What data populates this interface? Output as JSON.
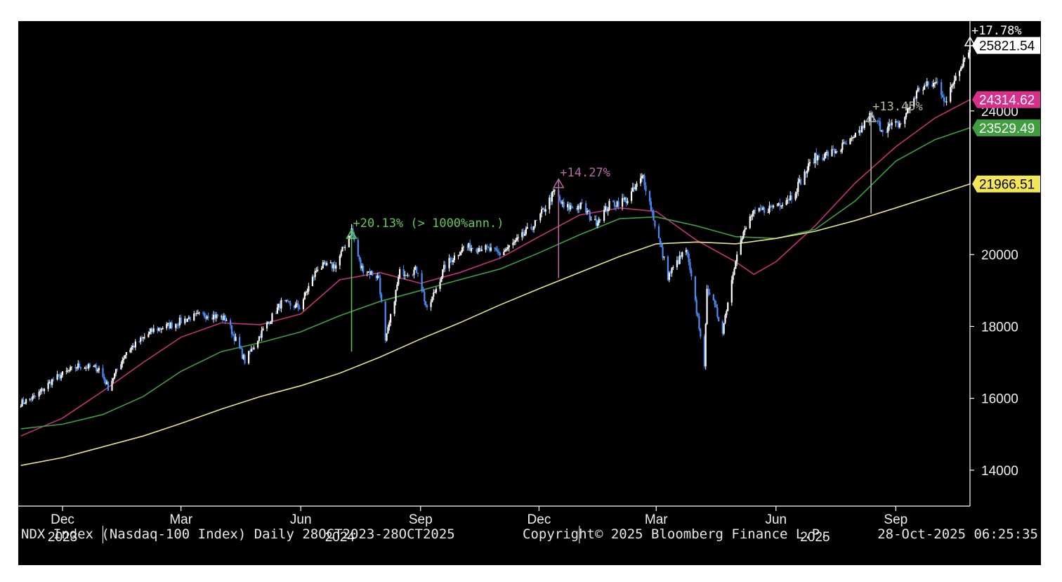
{
  "footer": {
    "description": "NDX Index (Nasdaq-100 Index) Daily 28OCT2023-28OCT2025",
    "copyright": "Copyright© 2025 Bloomberg Finance L.P.",
    "timestamp": "28-Oct-2025 06:25:35"
  },
  "chart_data": {
    "type": "line",
    "scale": "linear",
    "x_range": [
      "2023-10-28",
      "2025-10-28"
    ],
    "ylim": [
      13000,
      26500
    ],
    "grid": false,
    "y_ticks": [
      14000,
      16000,
      18000,
      20000,
      24000
    ],
    "y_tick_labels": [
      "14000",
      "16000",
      "18000",
      "20000",
      "24000"
    ],
    "x_ticks": [
      {
        "date": "2023-12-01",
        "label": "Dec"
      },
      {
        "date": "2024-03-01",
        "label": "Mar"
      },
      {
        "date": "2024-06-01",
        "label": "Jun"
      },
      {
        "date": "2024-09-01",
        "label": "Sep"
      },
      {
        "date": "2024-12-01",
        "label": "Dec"
      },
      {
        "date": "2025-03-01",
        "label": "Mar"
      },
      {
        "date": "2025-06-01",
        "label": "Jun"
      },
      {
        "date": "2025-09-01",
        "label": "Sep"
      }
    ],
    "year_labels": [
      {
        "date": "2023-12-01",
        "label": "2023"
      },
      {
        "date": "2024-07-01",
        "label": "2024"
      },
      {
        "date": "2025-07-01",
        "label": "2025"
      }
    ],
    "colors": {
      "price": "#ffffff",
      "price_down": "#4a8df8",
      "ma_fast": "#c2327a",
      "ma_mid": "#3f9e3f",
      "ma_slow": "#e8e28c"
    },
    "series": [
      {
        "key": "price",
        "points": [
          [
            "2023-10-30",
            15870
          ],
          [
            "2023-11-10",
            16040
          ],
          [
            "2023-11-24",
            16530
          ],
          [
            "2023-12-13",
            16900
          ],
          [
            "2023-12-29",
            16830
          ],
          [
            "2024-01-05",
            16300
          ],
          [
            "2024-01-19",
            17300
          ],
          [
            "2024-02-09",
            17900
          ],
          [
            "2024-02-23",
            18050
          ],
          [
            "2024-03-08",
            18250
          ],
          [
            "2024-03-22",
            18340
          ],
          [
            "2024-04-05",
            18200
          ],
          [
            "2024-04-19",
            17040
          ],
          [
            "2024-05-03",
            17900
          ],
          [
            "2024-05-17",
            18650
          ],
          [
            "2024-05-31",
            18540
          ],
          [
            "2024-06-14",
            19650
          ],
          [
            "2024-06-28",
            19700
          ],
          [
            "2024-07-10",
            20690
          ],
          [
            "2024-07-17",
            19650
          ],
          [
            "2024-07-31",
            19360
          ],
          [
            "2024-08-05",
            17540
          ],
          [
            "2024-08-16",
            19500
          ],
          [
            "2024-08-30",
            19570
          ],
          [
            "2024-09-06",
            18430
          ],
          [
            "2024-09-20",
            19700
          ],
          [
            "2024-10-04",
            20200
          ],
          [
            "2024-10-18",
            20200
          ],
          [
            "2024-11-01",
            20020
          ],
          [
            "2024-11-15",
            20400
          ],
          [
            "2024-11-29",
            20900
          ],
          [
            "2024-12-13",
            21760
          ],
          [
            "2024-12-20",
            21300
          ],
          [
            "2025-01-03",
            21350
          ],
          [
            "2025-01-13",
            20880
          ],
          [
            "2025-01-24",
            21380
          ],
          [
            "2025-02-07",
            21540
          ],
          [
            "2025-02-19",
            22180
          ],
          [
            "2025-03-10",
            19400
          ],
          [
            "2025-03-24",
            20150
          ],
          [
            "2025-04-04",
            17800
          ],
          [
            "2025-04-07",
            16800
          ],
          [
            "2025-04-09",
            19150
          ],
          [
            "2025-04-21",
            17900
          ],
          [
            "2025-05-02",
            20100
          ],
          [
            "2025-05-13",
            21100
          ],
          [
            "2025-05-30",
            21350
          ],
          [
            "2025-06-13",
            21630
          ],
          [
            "2025-06-30",
            22680
          ],
          [
            "2025-07-15",
            22850
          ],
          [
            "2025-07-31",
            23200
          ],
          [
            "2025-08-12",
            23840
          ],
          [
            "2025-08-22",
            23500
          ],
          [
            "2025-09-05",
            23650
          ],
          [
            "2025-09-19",
            24630
          ],
          [
            "2025-10-03",
            24780
          ],
          [
            "2025-10-10",
            24220
          ],
          [
            "2025-10-17",
            25000
          ],
          [
            "2025-10-28",
            25821.54
          ]
        ]
      },
      {
        "key": "ma_fast",
        "points": [
          [
            "2023-10-30",
            14950
          ],
          [
            "2023-12-01",
            15450
          ],
          [
            "2024-01-01",
            16200
          ],
          [
            "2024-02-01",
            17000
          ],
          [
            "2024-03-01",
            17700
          ],
          [
            "2024-04-01",
            18100
          ],
          [
            "2024-05-01",
            18050
          ],
          [
            "2024-06-01",
            18350
          ],
          [
            "2024-07-01",
            19300
          ],
          [
            "2024-08-01",
            19500
          ],
          [
            "2024-09-01",
            19200
          ],
          [
            "2024-10-01",
            19500
          ],
          [
            "2024-11-01",
            19900
          ],
          [
            "2024-12-01",
            20500
          ],
          [
            "2025-01-01",
            21100
          ],
          [
            "2025-02-01",
            21300
          ],
          [
            "2025-03-01",
            21200
          ],
          [
            "2025-04-01",
            20400
          ],
          [
            "2025-05-01",
            19800
          ],
          [
            "2025-05-15",
            19450
          ],
          [
            "2025-06-01",
            19800
          ],
          [
            "2025-07-01",
            20800
          ],
          [
            "2025-08-01",
            22000
          ],
          [
            "2025-09-01",
            23000
          ],
          [
            "2025-10-01",
            23800
          ],
          [
            "2025-10-28",
            24314.62
          ]
        ]
      },
      {
        "key": "ma_mid",
        "points": [
          [
            "2023-10-30",
            15150
          ],
          [
            "2023-12-01",
            15280
          ],
          [
            "2024-01-01",
            15550
          ],
          [
            "2024-02-01",
            16050
          ],
          [
            "2024-03-01",
            16750
          ],
          [
            "2024-04-01",
            17300
          ],
          [
            "2024-05-01",
            17550
          ],
          [
            "2024-06-01",
            17850
          ],
          [
            "2024-07-01",
            18300
          ],
          [
            "2024-08-01",
            18700
          ],
          [
            "2024-09-01",
            19000
          ],
          [
            "2024-10-01",
            19300
          ],
          [
            "2024-11-01",
            19600
          ],
          [
            "2024-12-01",
            20050
          ],
          [
            "2025-01-01",
            20550
          ],
          [
            "2025-02-01",
            21000
          ],
          [
            "2025-03-01",
            21050
          ],
          [
            "2025-04-01",
            20800
          ],
          [
            "2025-05-01",
            20500
          ],
          [
            "2025-06-01",
            20450
          ],
          [
            "2025-07-01",
            20700
          ],
          [
            "2025-08-01",
            21500
          ],
          [
            "2025-09-01",
            22600
          ],
          [
            "2025-10-01",
            23200
          ],
          [
            "2025-10-28",
            23529.49
          ]
        ]
      },
      {
        "key": "ma_slow",
        "points": [
          [
            "2023-10-30",
            14130
          ],
          [
            "2023-12-01",
            14350
          ],
          [
            "2024-01-01",
            14650
          ],
          [
            "2024-02-01",
            14950
          ],
          [
            "2024-03-01",
            15300
          ],
          [
            "2024-04-01",
            15700
          ],
          [
            "2024-05-01",
            16050
          ],
          [
            "2024-06-01",
            16350
          ],
          [
            "2024-07-01",
            16700
          ],
          [
            "2024-08-01",
            17150
          ],
          [
            "2024-09-01",
            17650
          ],
          [
            "2024-10-01",
            18100
          ],
          [
            "2024-11-01",
            18600
          ],
          [
            "2024-12-01",
            19050
          ],
          [
            "2025-01-01",
            19500
          ],
          [
            "2025-02-01",
            19950
          ],
          [
            "2025-03-01",
            20300
          ],
          [
            "2025-04-01",
            20350
          ],
          [
            "2025-05-01",
            20300
          ],
          [
            "2025-06-01",
            20450
          ],
          [
            "2025-07-01",
            20650
          ],
          [
            "2025-08-01",
            20950
          ],
          [
            "2025-09-01",
            21300
          ],
          [
            "2025-10-01",
            21650
          ],
          [
            "2025-10-28",
            21966.51
          ]
        ]
      }
    ],
    "price_labels": [
      {
        "value": 25821.54,
        "label": "25821.54",
        "bg": "#ffffff",
        "fg": "#000000"
      },
      {
        "value": 24314.62,
        "label": "24314.62",
        "bg": "#d6308a",
        "fg": "#ffffff"
      },
      {
        "value": 23529.49,
        "label": "23529.49",
        "bg": "#3f9e3f",
        "fg": "#ffffff"
      },
      {
        "value": 21966.51,
        "label": "21966.51",
        "bg": "#f2e55a",
        "fg": "#000000"
      }
    ],
    "annotations": [
      {
        "date": "2024-07-10",
        "from": 17300,
        "to": 20690,
        "label": "+20.13% (> 1000%ann.)",
        "color": "#62c956"
      },
      {
        "date": "2024-12-16",
        "from": 19350,
        "to": 22100,
        "label": "+14.27%",
        "color": "#b86aa9"
      },
      {
        "date": "2025-08-13",
        "from": 21150,
        "to": 23940,
        "label": "+13.45%",
        "color": "#b9b9a0"
      },
      {
        "date": "2025-10-28",
        "from": 21950,
        "to": 26050,
        "label": "+17.78%",
        "color": "#ffffff"
      }
    ]
  }
}
